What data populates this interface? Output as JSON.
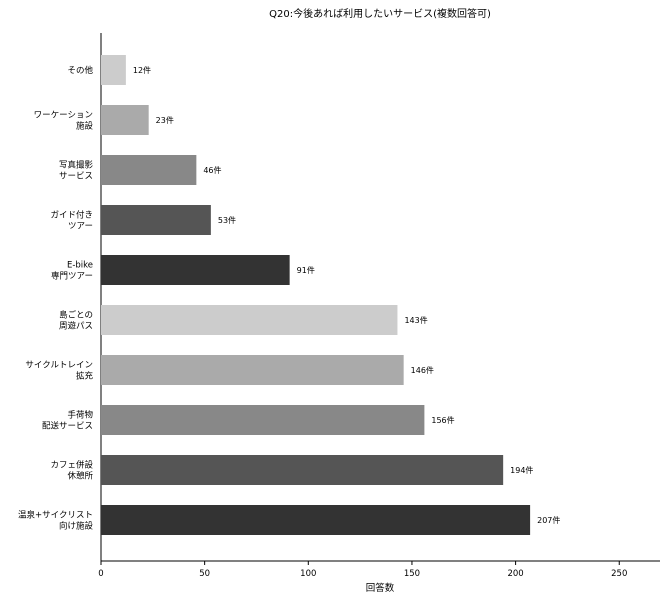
{
  "chart_data": {
    "type": "bar",
    "orientation": "horizontal",
    "title": "Q20:今後あれば利用したいサービス(複数回答可)",
    "xlabel": "回答数",
    "ylabel": "",
    "xlim": [
      0,
      270
    ],
    "xticks": [
      0,
      50,
      100,
      150,
      200,
      250
    ],
    "grid": false,
    "categories": [
      [
        "その他"
      ],
      [
        "ワーケーション",
        "施設"
      ],
      [
        "写真撮影",
        "サービス"
      ],
      [
        "ガイド付き",
        "ツアー"
      ],
      [
        "E-bike",
        "専門ツアー"
      ],
      [
        "島ごとの",
        "周遊パス"
      ],
      [
        "サイクルトレイン",
        "拡充"
      ],
      [
        "手荷物",
        "配送サービス"
      ],
      [
        "カフェ併設",
        "休憩所"
      ],
      [
        "温泉+サイクリスト",
        "向け施設"
      ]
    ],
    "values": [
      12,
      23,
      46,
      53,
      91,
      143,
      146,
      156,
      194,
      207
    ],
    "data_labels": [
      "12件",
      "23件",
      "46件",
      "53件",
      "91件",
      "143件",
      "146件",
      "156件",
      "194件",
      "207件"
    ],
    "colors": [
      "#cccccc",
      "#aaaaaa",
      "#888888",
      "#555555",
      "#333333",
      "#cccccc",
      "#aaaaaa",
      "#888888",
      "#555555",
      "#333333"
    ]
  }
}
